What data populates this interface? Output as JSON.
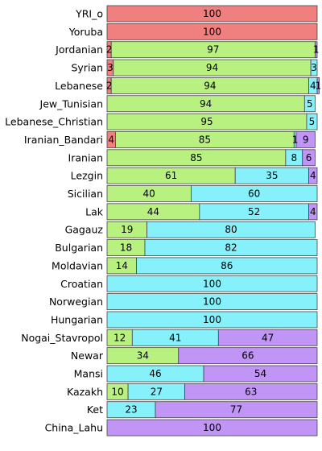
{
  "chart_data": {
    "type": "bar",
    "orientation": "horizontal",
    "stacked": true,
    "normalized": "percent",
    "title": "",
    "xlabel": "",
    "ylabel": "",
    "xlim": [
      0,
      100
    ],
    "grid": false,
    "legend": "none",
    "component_colors": [
      "#f07f7f",
      "#b9f181",
      "#86f1fa",
      "#c095f5"
    ],
    "categories": [
      "YRI_o",
      "Yoruba",
      "Jordanian",
      "Syrian",
      "Lebanese",
      "Jew_Tunisian",
      "Lebanese_Christian",
      "Iranian_Bandari",
      "Iranian",
      "Lezgin",
      "Sicilian",
      "Lak",
      "Gagauz",
      "Bulgarian",
      "Moldavian",
      "Croatian",
      "Norwegian",
      "Hungarian",
      "Nogai_Stavropol",
      "Newar",
      "Mansi",
      "Kazakh",
      "Ket",
      "China_Lahu"
    ],
    "series": [
      {
        "values": [
          100,
          100,
          2,
          3,
          2,
          0,
          0,
          4,
          0,
          0,
          0,
          0,
          0,
          0,
          0,
          0,
          0,
          0,
          0,
          0,
          0,
          0,
          0,
          0
        ]
      },
      {
        "values": [
          0,
          0,
          97,
          94,
          94,
          94,
          95,
          85,
          85,
          61,
          40,
          44,
          19,
          18,
          14,
          0,
          0,
          0,
          12,
          34,
          0,
          10,
          0,
          0
        ]
      },
      {
        "values": [
          0,
          0,
          0,
          3,
          4,
          5,
          5,
          1,
          8,
          35,
          60,
          52,
          80,
          82,
          86,
          100,
          100,
          100,
          41,
          0,
          46,
          27,
          23,
          0
        ]
      },
      {
        "values": [
          0,
          0,
          1,
          0,
          1,
          0,
          0,
          9,
          6,
          4,
          0,
          4,
          0,
          0,
          0,
          0,
          0,
          0,
          47,
          66,
          54,
          63,
          77,
          100
        ]
      }
    ]
  }
}
